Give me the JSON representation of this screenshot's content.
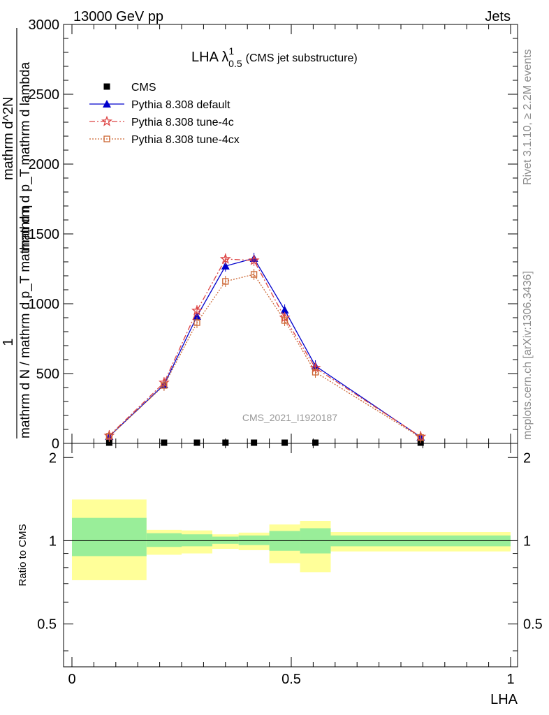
{
  "header": {
    "left": "13000 GeV pp",
    "right": "Jets"
  },
  "side_labels": {
    "top": "Rivet 3.1.10, ≥ 2.2M events",
    "bottom": "mcplots.cern.ch [arXiv:1306.3436]"
  },
  "chart_data": [
    {
      "type": "line",
      "title_main": "LHA λ",
      "title_sup": "1",
      "title_sub": "0.5",
      "title_suffix": "(CMS jet substructure)",
      "watermark": "CMS_2021_I1920187",
      "ylabel_num": "1",
      "ylabel_den": "mathrm d N / mathrm d p_T mathrm d η",
      "ylabel_num2": "mathrm d^2N",
      "ylabel_den2": "mathrm d p_T mathrm d lambda",
      "xlim": [
        0,
        1
      ],
      "ylim": [
        0,
        3000
      ],
      "yticks": [
        "0",
        "500",
        "1000",
        "1500",
        "2000",
        "2500",
        "3000"
      ],
      "legend_position": "top-left",
      "series": [
        {
          "name": "CMS",
          "marker": "square",
          "color": "#000000",
          "x": [
            0.085,
            0.21,
            0.285,
            0.35,
            0.415,
            0.485,
            0.555,
            0.795
          ],
          "y": [
            5,
            5,
            5,
            5,
            5,
            5,
            5,
            5
          ]
        },
        {
          "name": "Pythia 8.308 default",
          "marker": "triangle",
          "color": "#0000cc",
          "dash": "",
          "x": [
            0.085,
            0.21,
            0.285,
            0.35,
            0.415,
            0.485,
            0.555,
            0.795
          ],
          "y": [
            50,
            420,
            910,
            1270,
            1325,
            955,
            555,
            45
          ]
        },
        {
          "name": "Pythia 8.308 tune-4c",
          "marker": "star",
          "color": "#dd4444",
          "dash": "8,3,2,3",
          "x": [
            0.085,
            0.21,
            0.285,
            0.35,
            0.415,
            0.485,
            0.555,
            0.795
          ],
          "y": [
            55,
            435,
            950,
            1320,
            1310,
            900,
            540,
            48
          ]
        },
        {
          "name": "Pythia 8.308 tune-4cx",
          "marker": "open-square",
          "color": "#cc6633",
          "dash": "2,2",
          "x": [
            0.085,
            0.21,
            0.285,
            0.35,
            0.415,
            0.485,
            0.555,
            0.795
          ],
          "y": [
            50,
            415,
            865,
            1160,
            1210,
            880,
            510,
            42
          ]
        }
      ]
    },
    {
      "type": "area",
      "ylabel": "Ratio to CMS",
      "xlabel": "LHA",
      "xlim": [
        0,
        1
      ],
      "ylim": [
        0.35,
        2.25
      ],
      "xticks": [
        "0",
        "0.5",
        "1"
      ],
      "yticks_labeled": [
        "0.5",
        "1",
        "2"
      ],
      "bin_edges": [
        0,
        0.17,
        0.25,
        0.32,
        0.38,
        0.45,
        0.52,
        0.59,
        1.0
      ],
      "stat_band": {
        "color": "#99ee99",
        "lower": [
          0.88,
          0.95,
          0.955,
          0.975,
          0.965,
          0.92,
          0.9,
          0.955
        ],
        "upper": [
          1.21,
          1.065,
          1.055,
          1.035,
          1.045,
          1.085,
          1.11,
          1.045
        ]
      },
      "total_band": {
        "color": "#ffff99",
        "lower": [
          0.72,
          0.89,
          0.9,
          0.935,
          0.925,
          0.83,
          0.77,
          0.915
        ],
        "upper": [
          1.41,
          1.095,
          1.09,
          1.055,
          1.07,
          1.145,
          1.18,
          1.075
        ]
      },
      "reference": 1.0
    }
  ]
}
